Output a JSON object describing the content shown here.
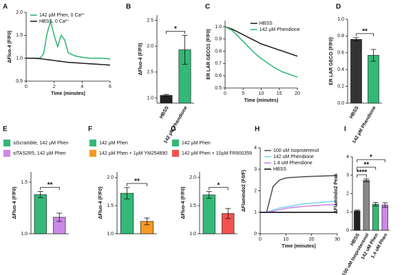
{
  "chart_data": [
    {
      "type": "line",
      "label": "A",
      "ylabel": "ΔFluo-4 (F/F0)",
      "xlabel": "Time (minutes)",
      "x": [
        0,
        0.5,
        1,
        1.25,
        1.5,
        1.75,
        2,
        2.25,
        2.5,
        2.75,
        3,
        3.5,
        4,
        4.5,
        5,
        5.5,
        6
      ],
      "series": [
        {
          "name": "142 µM Phen, 0 Ca²⁺",
          "color": "#33b877",
          "values": [
            1,
            1,
            1,
            1.1,
            1.55,
            1.8,
            1.5,
            1.25,
            1.5,
            1.4,
            1.12,
            1.05,
            1.02,
            1.0,
            1.0,
            1.0,
            0.98
          ]
        },
        {
          "name": "HBSS, 0 Ca²⁺",
          "color": "#222222",
          "values": [
            1,
            1,
            0.99,
            0.98,
            0.97,
            0.96,
            0.95,
            0.94,
            0.93,
            0.92,
            0.91,
            0.9,
            0.89,
            0.88,
            0.87,
            0.86,
            0.85
          ]
        }
      ],
      "xlim": [
        0,
        6
      ],
      "xticks": [
        0,
        2,
        4,
        6
      ],
      "ylim": [
        0.5,
        2.0
      ],
      "yticks": [
        {
          "value": 0.5,
          "label": "0.5"
        },
        {
          "value": 1,
          "label": "1.0"
        },
        {
          "value": 1.5,
          "label": "1.5"
        },
        {
          "value": 2,
          "label": "2.0"
        }
      ],
      "legend": "top-left"
    },
    {
      "type": "bar",
      "label": "B",
      "ylabel": "ΔFluo-4 (F/F0)",
      "categories": [
        "HBSS",
        "142 µM Phendione"
      ],
      "values": [
        1.05,
        1.93
      ],
      "errors": [
        0.02,
        0.28
      ],
      "colors": [
        "#222222",
        "#33b877"
      ],
      "ylim": [
        0.9,
        2.6
      ],
      "yticks": [
        {
          "value": 1,
          "label": "1.0"
        },
        {
          "value": 1.5,
          "label": "1.5"
        },
        {
          "value": 2,
          "label": "2.0"
        },
        {
          "value": 2.5,
          "label": "2.5"
        }
      ],
      "significance": [
        {
          "text": "*",
          "pair": [
            0,
            1
          ]
        }
      ]
    },
    {
      "type": "line",
      "label": "C",
      "ylabel": "ER LAR GECO1 (F/F0)",
      "xlabel": "Time (minutes)",
      "x": [
        0,
        2,
        4,
        6,
        8,
        10,
        12,
        14,
        16,
        18,
        20
      ],
      "series": [
        {
          "name": "HBSS",
          "color": "#222222",
          "values": [
            1.0,
            0.98,
            0.95,
            0.92,
            0.89,
            0.86,
            0.84,
            0.82,
            0.8,
            0.78,
            0.76
          ]
        },
        {
          "name": "142 µM Phendione",
          "color": "#33b877",
          "values": [
            1.0,
            0.97,
            0.91,
            0.85,
            0.79,
            0.74,
            0.7,
            0.66,
            0.63,
            0.61,
            0.59
          ]
        }
      ],
      "xlim": [
        0,
        20
      ],
      "xticks": [
        0,
        5,
        10,
        15,
        20
      ],
      "ylim": [
        0.5,
        1.05
      ],
      "yticks": [
        {
          "value": 0.5,
          "label": "0.5"
        },
        0.6,
        0.7,
        0.8,
        0.9,
        {
          "value": 1,
          "label": "1.0"
        }
      ],
      "legend": "top-right"
    },
    {
      "type": "bar",
      "label": "D",
      "ylabel": "ER LAR GECO (F/F0)",
      "categories": [
        "HBSS",
        "142 µM Phendione"
      ],
      "values": [
        0.76,
        0.57
      ],
      "errors": [
        0.02,
        0.07
      ],
      "colors": [
        "#333333",
        "#33b877"
      ],
      "ylim": [
        0,
        1.0
      ],
      "yticks": [
        {
          "value": 0,
          "label": "0.0"
        },
        0.2,
        0.4,
        0.6,
        0.8,
        {
          "value": 1,
          "label": "1.0"
        }
      ],
      "significance": [
        {
          "text": "**",
          "pair": [
            0,
            1
          ]
        }
      ]
    },
    {
      "type": "bar",
      "label": "E",
      "ylabel": "ΔFluo-4 (F/F0)",
      "categories": [
        null,
        null
      ],
      "legend": [
        "siScramble, 142 µM Phen",
        "siTAS2R5, 142 µM Phen"
      ],
      "values": [
        1.38,
        1.16
      ],
      "errors": [
        0.03,
        0.04
      ],
      "colors": [
        "#33b877",
        "#cc88e6"
      ],
      "ylim": [
        1.0,
        1.6
      ],
      "yticks": [
        {
          "value": 1,
          "label": "1.0"
        },
        1.5
      ],
      "significance": [
        {
          "text": "**",
          "pair": [
            0,
            1
          ]
        }
      ]
    },
    {
      "type": "bar",
      "label": "F",
      "ylabel": "ΔFluo-4 (F/F0)",
      "categories": [
        null,
        null
      ],
      "legend": [
        "142 µM Phen",
        "142 µM Phen + 1µM YM254890"
      ],
      "values": [
        1.72,
        1.22
      ],
      "errors": [
        0.1,
        0.06
      ],
      "colors": [
        "#33b877",
        "#f59a23"
      ],
      "ylim": [
        1.0,
        2.1
      ],
      "yticks": [
        {
          "value": 1,
          "label": "1.0"
        },
        1.5,
        {
          "value": 2,
          "label": "2.0"
        }
      ],
      "significance": [
        {
          "text": "**",
          "pair": [
            0,
            1
          ]
        }
      ]
    },
    {
      "type": "bar",
      "label": "G",
      "ylabel": "ΔFluo-4 (F/F0)",
      "categories": [
        null,
        null
      ],
      "legend": [
        "142 µM Phen",
        "142 µM Phen + 10µM FR900359"
      ],
      "values": [
        1.69,
        1.36
      ],
      "errors": [
        0.06,
        0.09
      ],
      "colors": [
        "#33b877",
        "#f2524f"
      ],
      "ylim": [
        1.0,
        2.1
      ],
      "yticks": [
        {
          "value": 1,
          "label": "1.0"
        },
        1.5,
        {
          "value": 2,
          "label": "2.0"
        }
      ],
      "significance": [
        {
          "text": "*",
          "pair": [
            0,
            1
          ]
        }
      ]
    },
    {
      "type": "line",
      "label": "H",
      "ylabel": "ΔFlamindo2 (F0/F)",
      "xlabel": "Time (minutes)",
      "x": [
        0,
        2.5,
        5,
        7.5,
        10,
        12.5,
        15,
        17.5,
        20,
        22.5,
        25,
        27.5,
        30
      ],
      "series": [
        {
          "name": "100 uM Isoproterenol",
          "color": "#555555",
          "values": [
            1,
            1,
            2.2,
            2.5,
            2.6,
            2.62,
            2.64,
            2.66,
            2.67,
            2.68,
            2.69,
            2.7,
            2.7
          ]
        },
        {
          "name": "142 uM Phendione",
          "color": "#7fd8e8",
          "values": [
            1,
            1,
            1.1,
            1.2,
            1.25,
            1.3,
            1.35,
            1.4,
            1.42,
            1.45,
            1.48,
            1.5,
            1.52
          ]
        },
        {
          "name": "1.4 uM Phendione",
          "color": "#cc88e6",
          "values": [
            1,
            1,
            1.05,
            1.12,
            1.18,
            1.22,
            1.25,
            1.28,
            1.3,
            1.32,
            1.34,
            1.35,
            1.36
          ]
        },
        {
          "name": "HBSS",
          "color": "#111111",
          "values": [
            1,
            1,
            1,
            1,
            1,
            1,
            1,
            1,
            1,
            1,
            1,
            1,
            1
          ]
        }
      ],
      "xlim": [
        0,
        30
      ],
      "xticks": [
        0,
        10,
        20,
        30
      ],
      "ylim": [
        0,
        4
      ],
      "yticks": [
        0,
        1,
        2,
        3,
        4
      ],
      "legend": "top-left"
    },
    {
      "type": "bar",
      "label": "I",
      "ylabel": "ΔFlamindo2 Peak",
      "categories": [
        "HBSS",
        "100 uM Isoproterenol",
        "142 uM Phen",
        "1.4 uM Phen"
      ],
      "values": [
        1.05,
        2.72,
        1.42,
        1.38
      ],
      "errors": [
        0.05,
        0.08,
        0.1,
        0.12
      ],
      "colors": [
        "#222222",
        "#888888",
        "#33b877",
        "#cc88e6"
      ],
      "ylim": [
        0,
        4
      ],
      "yticks": [
        0,
        1,
        2,
        3,
        4
      ],
      "significance": [
        {
          "text": "****",
          "pair": [
            0,
            1
          ]
        },
        {
          "text": "**",
          "pair": [
            0,
            2
          ]
        },
        {
          "text": "*",
          "pair": [
            0,
            3
          ]
        }
      ]
    }
  ]
}
